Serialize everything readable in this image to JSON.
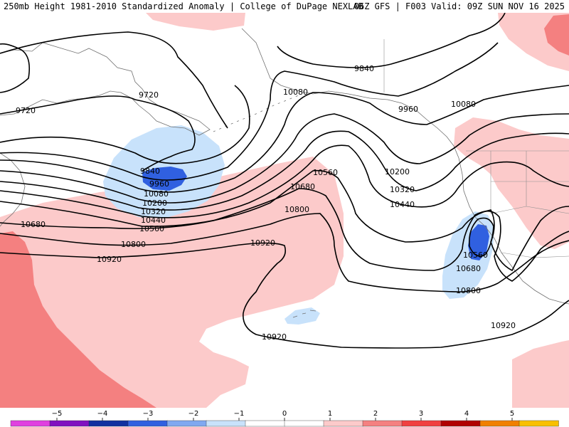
{
  "header": {
    "title_left": "250mb Height 1981-2010 Standardized Anomaly | College of DuPage NEXLAB",
    "title_right": "06Z GFS | F003 Valid: 09Z SUN NOV 16 2025"
  },
  "contour_labels": {
    "l9840_a": "9840",
    "l9720_a": "9720",
    "l9720_b": "9720",
    "l9840_b": "9840",
    "l9960_a": "9960",
    "l10080_a": "10080",
    "l10200_a": "10200",
    "l10320_a": "10320",
    "l10440_a": "10440",
    "l10560_a": "10560",
    "l10680_a": "10680",
    "l10800_a": "10800",
    "l10920_a": "10920",
    "l10080_b": "10080",
    "l9960_b": "9960",
    "l10080_c": "10080",
    "l10200_b": "10200",
    "l10320_b": "10320",
    "l10440_b": "10440",
    "l10560_b": "10560",
    "l10680_b": "10680",
    "l10800_b": "10800",
    "l10920_b": "10920",
    "l10560_c": "10560",
    "l10680_c": "10680",
    "l10800_c": "10800",
    "l10920_c": "10920",
    "l10920_d": "10920"
  },
  "legend": {
    "ticks": [
      "−5",
      "−4",
      "−3",
      "−2",
      "−1",
      "0",
      "1",
      "2",
      "3",
      "4",
      "5"
    ],
    "colors": [
      "#e040e0",
      "#8010c0",
      "#1030a0",
      "#3060e0",
      "#7fa8f0",
      "#c8e2fb",
      "#ffffff",
      "#ffffff",
      "#fccaca",
      "#f48080",
      "#f04040",
      "#b00000",
      "#f08000",
      "#f8c000"
    ]
  }
}
